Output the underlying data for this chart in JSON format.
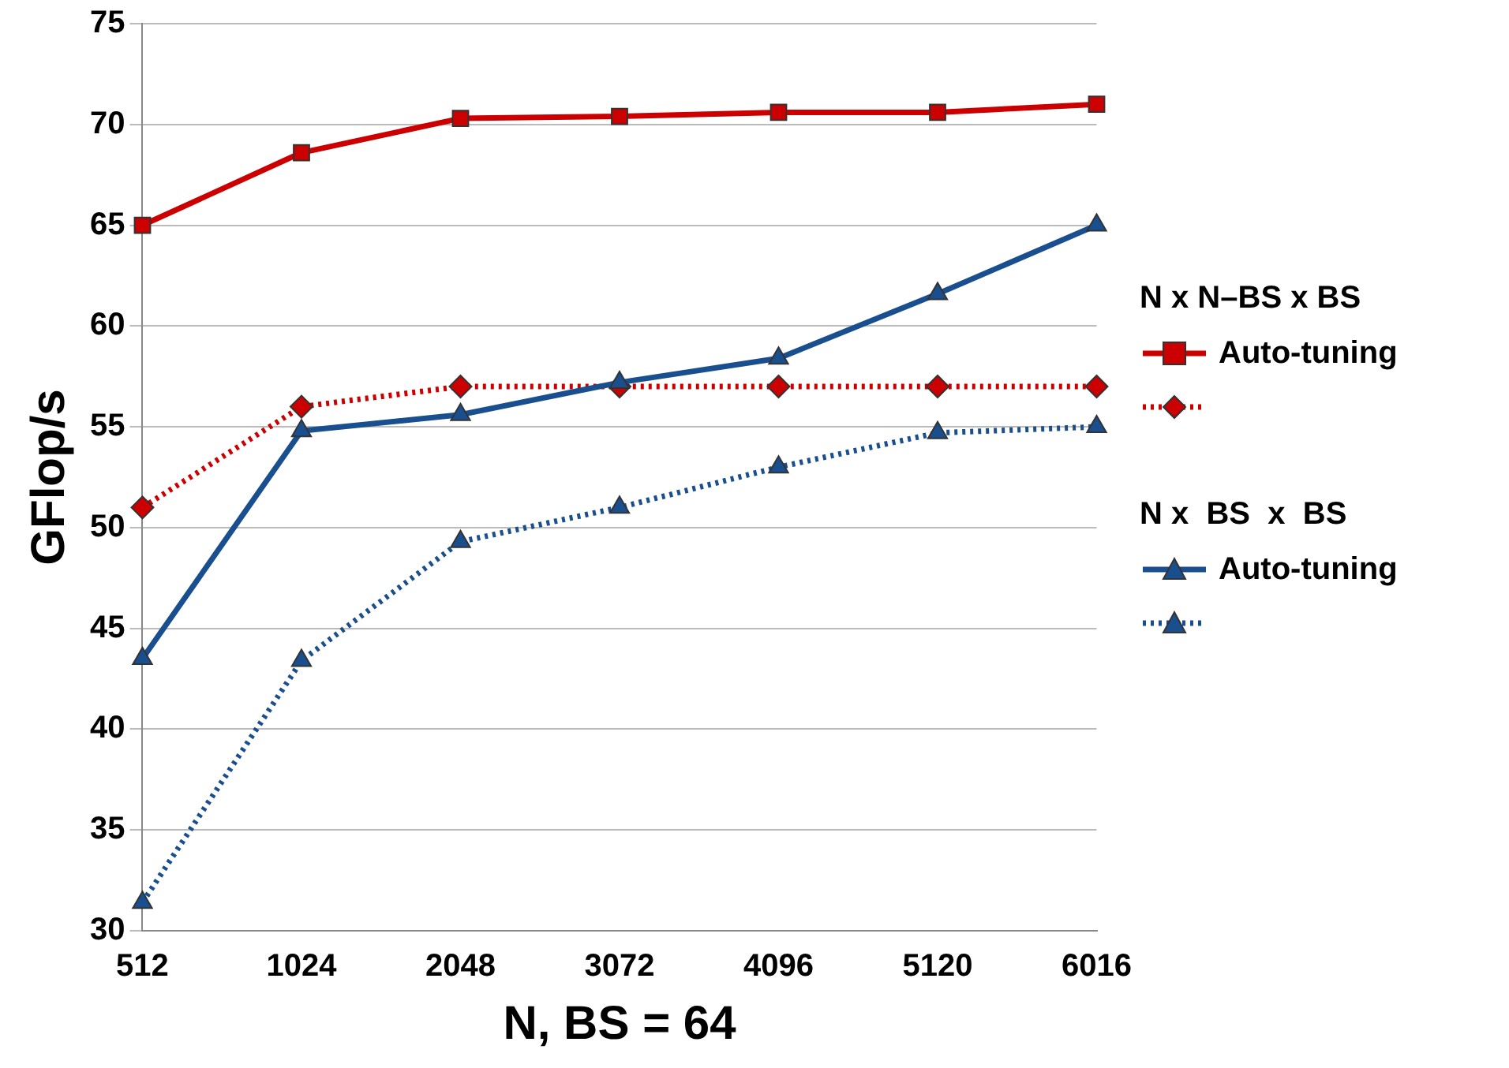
{
  "chart_data": {
    "type": "line",
    "xlabel": "N, BS = 64",
    "ylabel": "GFlop/s",
    "categories": [
      "512",
      "1024",
      "2048",
      "3072",
      "4096",
      "5120",
      "6016"
    ],
    "series": [
      {
        "name": "Auto-tuning",
        "color": "#cc0000",
        "marker": "square",
        "line_style": "solid",
        "values": [
          65,
          68.6,
          70.3,
          70.4,
          70.6,
          70.6,
          71
        ]
      },
      {
        "color": "#cc0000",
        "marker": "diamond",
        "line_style": "dotted",
        "values": [
          51,
          56,
          57,
          57,
          57,
          57,
          57
        ]
      },
      {
        "name": "Auto-tuning",
        "color": "#1a4f8f",
        "marker": "triangle",
        "line_style": "solid",
        "values": [
          43.5,
          54.8,
          55.6,
          57.2,
          58.4,
          61.6,
          65
        ]
      },
      {
        "color": "#1a4f8f",
        "marker": "triangle",
        "line_style": "dotted",
        "values": [
          31.4,
          43.4,
          49.3,
          51,
          53,
          54.7,
          55
        ]
      }
    ],
    "annotations": [
      "N x N–BS x BS",
      "N x  BS  x  BS"
    ],
    "ylim": [
      30,
      75
    ],
    "yticks": [
      30,
      35,
      40,
      45,
      50,
      55,
      60,
      65,
      70,
      75
    ],
    "grid": "y",
    "legend": "right"
  }
}
